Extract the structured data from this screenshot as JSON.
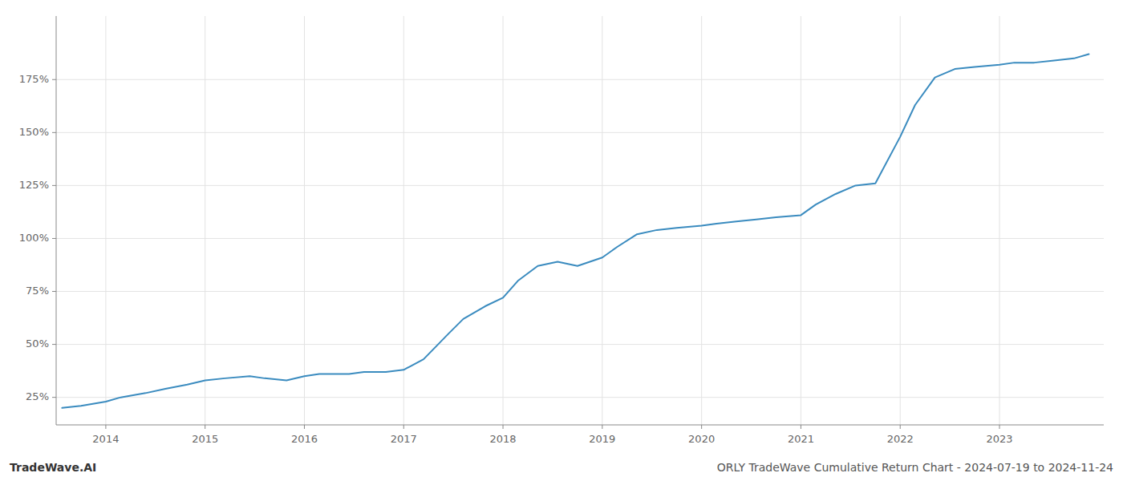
{
  "chart_data": {
    "type": "line",
    "title": "ORLY TradeWave Cumulative Return Chart - 2024-07-19 to 2024-11-24",
    "annotations": [
      "TradeWave.AI"
    ],
    "color": "#3a8bbf",
    "grid": true,
    "x": [
      2013.56,
      2013.75,
      2014.0,
      2014.15,
      2014.4,
      2014.6,
      2014.82,
      2015.0,
      2015.2,
      2015.45,
      2015.6,
      2015.82,
      2016.0,
      2016.15,
      2016.45,
      2016.6,
      2016.82,
      2017.0,
      2017.2,
      2017.45,
      2017.6,
      2017.82,
      2018.0,
      2018.15,
      2018.35,
      2018.55,
      2018.75,
      2019.0,
      2019.15,
      2019.35,
      2019.55,
      2019.75,
      2020.0,
      2020.15,
      2020.35,
      2020.55,
      2020.75,
      2021.0,
      2021.15,
      2021.35,
      2021.55,
      2021.75,
      2022.0,
      2022.15,
      2022.35,
      2022.55,
      2022.75,
      2023.0,
      2023.15,
      2023.35,
      2023.55,
      2023.75,
      2023.9
    ],
    "values": [
      20,
      21,
      23,
      25,
      27,
      29,
      31,
      33,
      34,
      35,
      34,
      33,
      35,
      36,
      36,
      37,
      37,
      38,
      43,
      55,
      62,
      68,
      72,
      80,
      87,
      89,
      87,
      91,
      96,
      102,
      104,
      105,
      106,
      107,
      108,
      109,
      110,
      111,
      116,
      121,
      125,
      126,
      148,
      163,
      176,
      180,
      181,
      182,
      183,
      183,
      184,
      185,
      187
    ],
    "xlim": [
      2013.5,
      2024.05
    ],
    "ylim": [
      12,
      205
    ],
    "xticks": [
      2014,
      2015,
      2016,
      2017,
      2018,
      2019,
      2020,
      2021,
      2022,
      2023
    ],
    "yticks": [
      {
        "value": 25,
        "label": "25%"
      },
      {
        "value": 50,
        "label": "50%"
      },
      {
        "value": 75,
        "label": "75%"
      },
      {
        "value": 100,
        "label": "100%"
      },
      {
        "value": 125,
        "label": "125%"
      },
      {
        "value": 150,
        "label": "150%"
      },
      {
        "value": 175,
        "label": "175%"
      }
    ]
  }
}
